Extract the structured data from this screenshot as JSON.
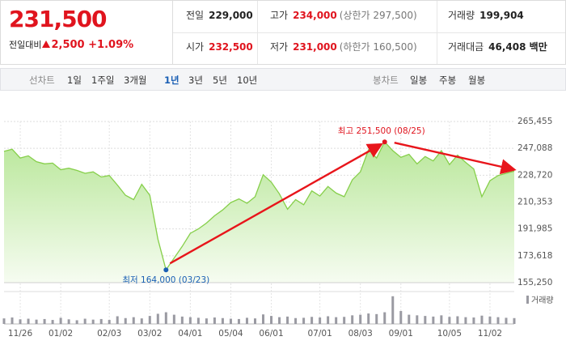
{
  "quote": {
    "price": "231,500",
    "change_label": "전일대비",
    "change": "2,500",
    "change_pct": "+1.09%"
  },
  "stats": [
    [
      {
        "label": "전일",
        "value": "229,000"
      },
      {
        "label": "고가",
        "value": "234,000",
        "note": "(상한가 297,500)"
      },
      {
        "label": "거래량",
        "value": "199,904"
      }
    ],
    [
      {
        "label": "시가",
        "value": "232,500"
      },
      {
        "label": "저가",
        "value": "231,000",
        "note": "(하한가 160,500)"
      },
      {
        "label": "거래대금",
        "value": "46,408 백만"
      }
    ]
  ],
  "tabs": {
    "line_label": "선차트",
    "line": [
      "1일",
      "1주일",
      "3개월",
      "1년",
      "3년",
      "5년",
      "10년"
    ],
    "selected": "1년",
    "candle_label": "봉차트",
    "candle": [
      "일봉",
      "주봉",
      "월봉"
    ]
  },
  "chart_data": [
    {
      "type": "line",
      "area": true,
      "grid": true,
      "categories": [
        null,
        null,
        "11/26",
        null,
        null,
        null,
        null,
        "01/02",
        null,
        null,
        null,
        null,
        null,
        "02/03",
        null,
        null,
        null,
        null,
        "03/02",
        null,
        null,
        null,
        null,
        "04/01",
        null,
        null,
        null,
        null,
        "05/04",
        null,
        null,
        null,
        null,
        "06/01",
        null,
        null,
        null,
        null,
        null,
        "07/01",
        null,
        null,
        null,
        null,
        "08/03",
        null,
        null,
        null,
        null,
        "09/01",
        null,
        null,
        null,
        null,
        null,
        "10/05",
        null,
        null,
        null,
        null,
        "11/02",
        null,
        null,
        null
      ],
      "series": [
        {
          "color": "#86cf4a",
          "values": [
            245000,
            246500,
            240500,
            242000,
            238000,
            236500,
            237000,
            232500,
            233500,
            232000,
            230000,
            231000,
            227500,
            228500,
            222000,
            215000,
            212000,
            222500,
            215000,
            185000,
            164000,
            172000,
            180000,
            189000,
            192000,
            196000,
            201000,
            205000,
            210000,
            212500,
            209500,
            214000,
            229000,
            224000,
            216000,
            205500,
            212000,
            208500,
            218000,
            214500,
            221000,
            216500,
            214000,
            225500,
            231000,
            246000,
            240500,
            251500,
            245500,
            241000,
            243000,
            236500,
            241500,
            238500,
            245500,
            236000,
            242500,
            237500,
            233000,
            214000,
            225000,
            228500,
            230000,
            231500
          ]
        }
      ],
      "ylim": [
        155250,
        265455
      ],
      "yticks": [
        {
          "value": 155250,
          "label": "155,250"
        },
        {
          "value": 173618,
          "label": "173,618"
        },
        {
          "value": 191985,
          "label": "191,985"
        },
        {
          "value": 210353,
          "label": "210,353"
        },
        {
          "value": 228720,
          "label": "228,720"
        },
        {
          "value": 247088,
          "label": "247,088"
        },
        {
          "value": 265455,
          "label": "265,455"
        }
      ],
      "annotations": [
        {
          "index": 47,
          "text": "최고 251,500 (08/25)",
          "color": "#e0141e"
        },
        {
          "index": 20,
          "text": "최저 164,000 (03/23)",
          "color": "#1a5fb4"
        }
      ]
    },
    {
      "type": "bar",
      "ylim": [
        0,
        1000000
      ],
      "series": [
        {
          "name": "거래량",
          "color": "#9a9aa2",
          "values": [
            180000,
            210000,
            150000,
            170000,
            140000,
            160000,
            130000,
            200000,
            150000,
            120000,
            170000,
            140000,
            160000,
            130000,
            250000,
            190000,
            220000,
            180000,
            260000,
            330000,
            380000,
            300000,
            240000,
            220000,
            200000,
            180000,
            210000,
            190000,
            170000,
            160000,
            200000,
            180000,
            310000,
            260000,
            220000,
            240000,
            190000,
            200000,
            230000,
            210000,
            250000,
            220000,
            230000,
            280000,
            300000,
            340000,
            320000,
            380000,
            900000,
            420000,
            300000,
            280000,
            260000,
            240000,
            280000,
            230000,
            250000,
            220000,
            210000,
            270000,
            240000,
            220000,
            200000,
            190000
          ]
        }
      ]
    }
  ]
}
